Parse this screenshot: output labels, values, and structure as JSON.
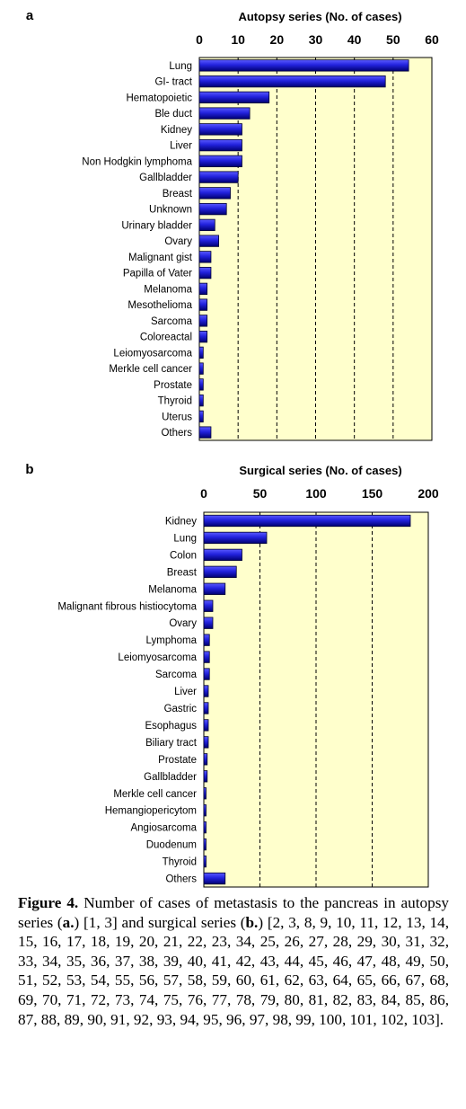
{
  "chart_data": [
    {
      "panel": "a",
      "type": "bar",
      "orientation": "horizontal",
      "title": "Autopsy series (No. of cases)",
      "xlim": [
        0,
        60
      ],
      "xticks": [
        0,
        10,
        20,
        30,
        40,
        50,
        60
      ],
      "grid": true,
      "categories": [
        "Lung",
        "GI- tract",
        "Hematopoietic",
        "Ble duct",
        "Kidney",
        "Liver",
        "Non Hodgkin lymphoma",
        "Gallbladder",
        "Breast",
        "Unknown",
        "Urinary bladder",
        "Ovary",
        "Malignant gist",
        "Papilla of Vater",
        "Melanoma",
        "Mesothelioma",
        "Sarcoma",
        "Coloreactal",
        "Leiomyosarcoma",
        "Merkle cell cancer",
        "Prostate",
        "Thyroid",
        "Uterus",
        "Others"
      ],
      "values": [
        54,
        48,
        18,
        13,
        11,
        11,
        11,
        10,
        8,
        7,
        4,
        5,
        3,
        3,
        2,
        2,
        2,
        2,
        1,
        1,
        1,
        1,
        1,
        3
      ]
    },
    {
      "panel": "b",
      "type": "bar",
      "orientation": "horizontal",
      "title": "Surgical series (No. of cases)",
      "xlim": [
        0,
        200
      ],
      "xticks": [
        0,
        50,
        100,
        150,
        200
      ],
      "grid": true,
      "categories": [
        "Kidney",
        "Lung",
        "Colon",
        "Breast",
        "Melanoma",
        "Malignant fibrous histiocytoma",
        "Ovary",
        "Lymphoma",
        "Leiomyosarcoma",
        "Sarcoma",
        "Liver",
        "Gastric",
        "Esophagus",
        "Biliary tract",
        "Prostate",
        "Gallbladder",
        "Merkle cell cancer",
        "Hemangiopericytom",
        "Angiosarcoma",
        "Duodenum",
        "Thyroid",
        "Others"
      ],
      "values": [
        184,
        56,
        34,
        29,
        19,
        8,
        8,
        5,
        5,
        5,
        4,
        4,
        4,
        4,
        3,
        3,
        2,
        2,
        2,
        2,
        2,
        19
      ]
    }
  ],
  "caption": {
    "label": "Figure 4.",
    "text_1": " Number of cases of metastasis to the pancreas in autopsy series (",
    "bold_a": "a.",
    "text_2": ") [1, 3] and surgical series (",
    "bold_b": "b.",
    "text_3": ") [2, 3, 8, 9, 10, 11, 12, 13, 14, 15, 16, 17, 18, 19, 20, 21, 22, 23, 34, 25, 26, 27, 28, 29, 30, 31, 32, 33, 34, 35, 36, 37, 38, 39, 40, 41, 42, 43, 44, 45, 46, 47, 48, 49, 50, 51, 52, 53, 54, 55, 56, 57, 58, 59, 60, 61, 62, 63, 64, 65, 66, 67, 68, 69, 70, 71, 72, 73, 74, 75, 76, 77, 78, 79, 80, 81, 82, 83, 84, 85, 86, 87, 88, 89, 90, 91, 92, 93, 94, 95, 96, 97, 98, 99, 100, 101, 102, 103]."
  },
  "colors": {
    "plot_background": "#ffffcc",
    "bar_dark": "#00008b",
    "bar_light": "#3a3aff"
  }
}
